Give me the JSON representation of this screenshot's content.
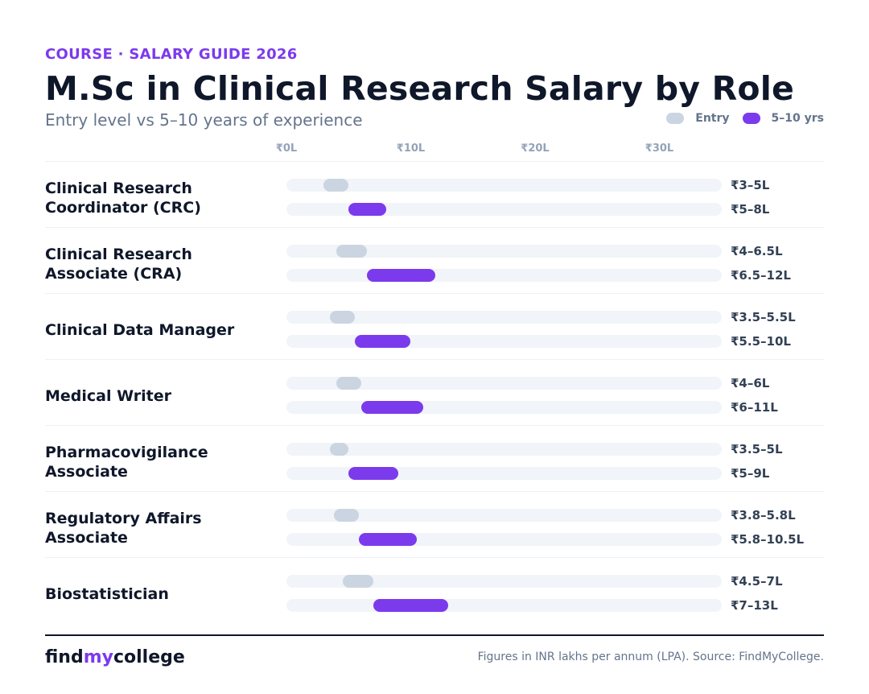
{
  "header": {
    "eyebrow": "COURSE · SALARY GUIDE 2026",
    "title": "M.Sc in Clinical Research Salary by Role",
    "subtitle": "Entry level vs 5–10 years of experience"
  },
  "legend": {
    "entry_label": "Entry",
    "exp_label": "5–10 yrs"
  },
  "colors": {
    "accent": "#7c3aed",
    "entry": "#cbd5e1",
    "track": "#f1f4f8"
  },
  "chart_data": {
    "type": "bar",
    "orientation": "horizontal-range",
    "unit": "INR lakhs per annum",
    "x_ticks": [
      "₹0L",
      "₹10L",
      "₹20L",
      "₹30L"
    ],
    "x_tick_values": [
      0,
      10,
      20,
      30
    ],
    "grid": false,
    "legend_position": "top-right",
    "series": [
      {
        "name": "Entry"
      },
      {
        "name": "5–10 yrs"
      }
    ],
    "roles": [
      {
        "name": "Clinical Research Coordinator (CRC)",
        "entry": [
          3,
          5
        ],
        "entry_label": "₹3–5L",
        "exp": [
          5,
          8
        ],
        "exp_label": "₹5–8L"
      },
      {
        "name": "Clinical Research Associate (CRA)",
        "entry": [
          4,
          6.5
        ],
        "entry_label": "₹4–6.5L",
        "exp": [
          6.5,
          12
        ],
        "exp_label": "₹6.5–12L"
      },
      {
        "name": "Clinical Data Manager",
        "entry": [
          3.5,
          5.5
        ],
        "entry_label": "₹3.5–5.5L",
        "exp": [
          5.5,
          10
        ],
        "exp_label": "₹5.5–10L"
      },
      {
        "name": "Medical Writer",
        "entry": [
          4,
          6
        ],
        "entry_label": "₹4–6L",
        "exp": [
          6,
          11
        ],
        "exp_label": "₹6–11L"
      },
      {
        "name": "Pharmacovigilance Associate",
        "entry": [
          3.5,
          5
        ],
        "entry_label": "₹3.5–5L",
        "exp": [
          5,
          9
        ],
        "exp_label": "₹5–9L"
      },
      {
        "name": "Regulatory Affairs Associate",
        "entry": [
          3.8,
          5.8
        ],
        "entry_label": "₹3.8–5.8L",
        "exp": [
          5.8,
          10.5
        ],
        "exp_label": "₹5.8–10.5L"
      },
      {
        "name": "Biostatistician",
        "entry": [
          4.5,
          7
        ],
        "entry_label": "₹4.5–7L",
        "exp": [
          7,
          13
        ],
        "exp_label": "₹7–13L"
      }
    ]
  },
  "footer": {
    "brand_part1": "find",
    "brand_part2": "my",
    "brand_part3": "college",
    "source": "Figures in INR lakhs per annum (LPA). Source: FindMyCollege."
  }
}
